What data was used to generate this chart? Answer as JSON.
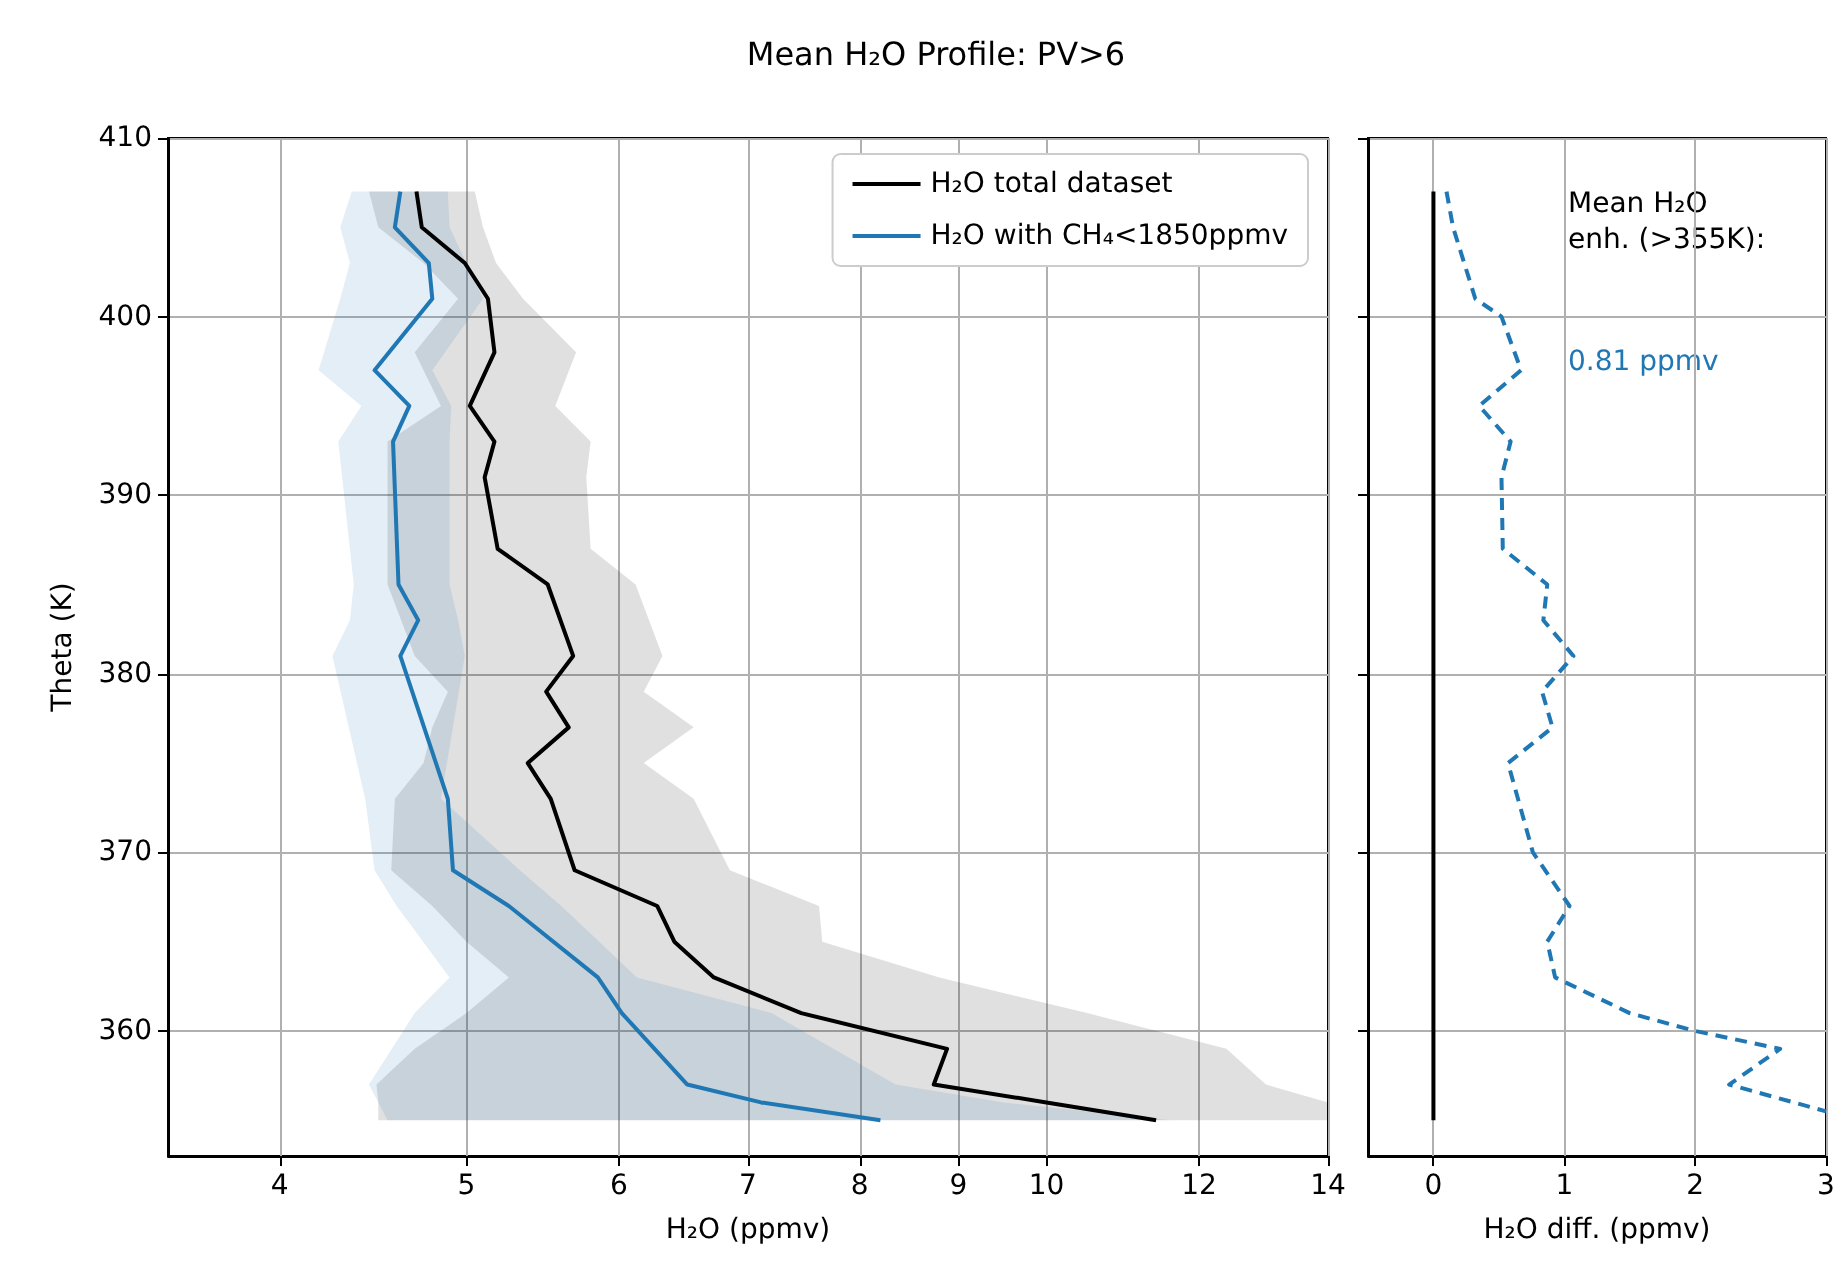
{
  "chart_data": [
    {
      "type": "line",
      "orientation": "horizontal",
      "title": "Mean H₂O Profile: PV>6",
      "xlabel": "H₂O (ppmv)",
      "ylabel": "Theta (K)",
      "log": "x",
      "xlim": [
        3.5,
        14
      ],
      "xticks": [
        4,
        5,
        6,
        7,
        8,
        9,
        10,
        12,
        14
      ],
      "ylim": [
        353,
        410
      ],
      "yticks": [
        360,
        370,
        380,
        390,
        400,
        410
      ],
      "grid": true,
      "legend": "top right",
      "series": [
        {
          "name": "H₂O total dataset",
          "color": "#000000",
          "x": [
            407,
            405,
            403,
            401,
            398,
            395,
            393,
            391,
            387,
            385,
            381,
            379,
            377,
            375,
            373,
            369,
            367,
            365,
            363,
            361,
            359,
            357,
            356,
            355
          ],
          "values": [
            4.71,
            4.74,
            4.99,
            5.13,
            5.17,
            5.02,
            5.17,
            5.11,
            5.19,
            5.51,
            5.68,
            5.5,
            5.65,
            5.38,
            5.53,
            5.69,
            6.28,
            6.41,
            6.72,
            7.46,
            8.88,
            8.74,
            10.0,
            11.4
          ],
          "lower": [
            4.45,
            4.5,
            4.75,
            4.95,
            4.7,
            4.85,
            4.55,
            4.55,
            4.55,
            4.55,
            4.7,
            4.89,
            4.8,
            4.75,
            4.59,
            4.57,
            4.8,
            5.0,
            5.26,
            5.0,
            4.7,
            4.49,
            4.5,
            4.5
          ],
          "upper": [
            5.05,
            5.1,
            5.18,
            5.35,
            5.7,
            5.56,
            5.8,
            5.77,
            5.8,
            6.12,
            6.32,
            6.18,
            6.56,
            6.18,
            6.56,
            6.85,
            7.62,
            7.65,
            8.8,
            10.5,
            12.4,
            13.0,
            14.0,
            14.0
          ]
        },
        {
          "name": "H₂O with CH₄<1850ppmv",
          "color": "#1f77b4",
          "x": [
            407,
            405,
            403,
            401,
            397,
            395,
            393,
            385,
            383,
            381,
            373,
            369,
            367,
            363,
            361,
            357,
            356,
            355
          ],
          "values": [
            4.62,
            4.59,
            4.78,
            4.8,
            4.48,
            4.67,
            4.58,
            4.61,
            4.72,
            4.62,
            4.89,
            4.92,
            5.26,
            5.85,
            6.02,
            6.51,
            7.11,
            8.2
          ],
          "lower": [
            4.36,
            4.3,
            4.35,
            4.3,
            4.19,
            4.41,
            4.29,
            4.37,
            4.35,
            4.26,
            4.43,
            4.48,
            4.6,
            4.9,
            4.7,
            4.45,
            4.5,
            4.55
          ],
          "upper": [
            4.89,
            4.9,
            5.0,
            5.1,
            4.8,
            4.91,
            4.9,
            4.9,
            4.95,
            4.99,
            4.85,
            5.33,
            5.6,
            6.13,
            7.2,
            8.35,
            9.5,
            11.6
          ]
        }
      ]
    },
    {
      "type": "line",
      "orientation": "horizontal",
      "xlabel": "H₂O diff. (ppmv)",
      "xlim": [
        -0.5,
        3
      ],
      "xticks": [
        0,
        1,
        2,
        3
      ],
      "ylim": [
        353,
        410
      ],
      "yticks": [
        360,
        370,
        380,
        390,
        400,
        410
      ],
      "grid": true,
      "tick_labels": "x",
      "annotations": [
        "Mean H₂O\nenh. (>355K):",
        "0.81 ppmv"
      ],
      "series": [
        {
          "color": "#1f77b4",
          "line_style": "dashed",
          "x": [
            407,
            405,
            401,
            400,
            397,
            395,
            393,
            391,
            387,
            385,
            383,
            381,
            379,
            377,
            375,
            370,
            367,
            365,
            363,
            361,
            360,
            359,
            357,
            355.5
          ],
          "values": [
            0.1,
            0.15,
            0.32,
            0.52,
            0.67,
            0.35,
            0.59,
            0.52,
            0.53,
            0.87,
            0.84,
            1.07,
            0.83,
            0.91,
            0.57,
            0.76,
            1.04,
            0.87,
            0.93,
            1.5,
            2.0,
            2.65,
            2.26,
            3.0
          ]
        },
        {
          "color": "#000000",
          "x": [
            355,
            407
          ],
          "values": [
            0,
            0
          ]
        }
      ]
    }
  ]
}
